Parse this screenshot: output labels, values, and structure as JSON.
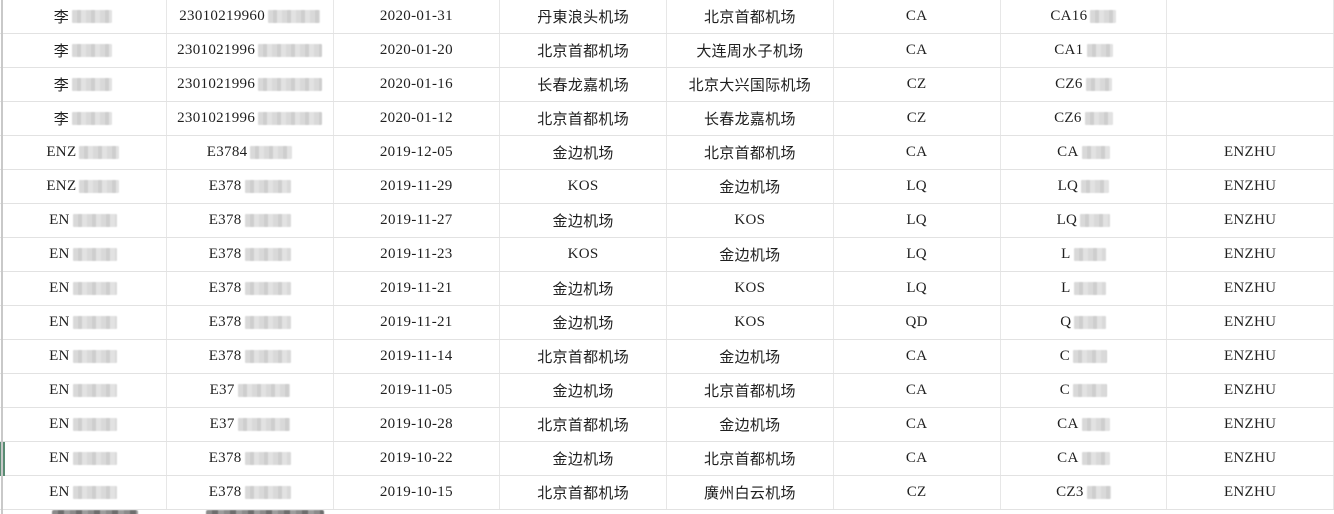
{
  "colors": {
    "row_marker_green": "#5a8c73",
    "grid_line": "#e2e2e2",
    "sheet_edge": "#c9c9c9",
    "text": "#1f1f1f",
    "redaction_light": "#d2d2d2",
    "redaction_dark": "#7a7a7a"
  },
  "rows": [
    {
      "name_prefix": "李",
      "name_redacted_w": 40,
      "id_prefix": "23010219960",
      "id_redacted_w": 52,
      "date": "2020-01-31",
      "from": "丹東浪头机场",
      "to": "北京首都机场",
      "carrier": "CA",
      "flight_prefix": "CA16",
      "flight_redacted_w": 26,
      "tag": "",
      "marked": false
    },
    {
      "name_prefix": "李",
      "name_redacted_w": 40,
      "id_prefix": "2301021996",
      "id_redacted_w": 64,
      "date": "2020-01-20",
      "from": "北京首都机场",
      "to": "大连周水子机场",
      "carrier": "CA",
      "flight_prefix": "CA1",
      "flight_redacted_w": 26,
      "tag": "",
      "marked": false
    },
    {
      "name_prefix": "李",
      "name_redacted_w": 40,
      "id_prefix": "2301021996",
      "id_redacted_w": 64,
      "date": "2020-01-16",
      "from": "长春龙嘉机场",
      "to": "北京大兴国际机场",
      "carrier": "CZ",
      "flight_prefix": "CZ6",
      "flight_redacted_w": 26,
      "tag": "",
      "marked": false
    },
    {
      "name_prefix": "李",
      "name_redacted_w": 40,
      "id_prefix": "2301021996",
      "id_redacted_w": 64,
      "date": "2020-01-12",
      "from": "北京首都机场",
      "to": "长春龙嘉机场",
      "carrier": "CZ",
      "flight_prefix": "CZ6",
      "flight_redacted_w": 28,
      "tag": "",
      "marked": false
    },
    {
      "name_prefix": "ENZ",
      "name_redacted_w": 40,
      "id_prefix": "E3784",
      "id_redacted_w": 42,
      "date": "2019-12-05",
      "from": "金边机场",
      "to": "北京首都机场",
      "carrier": "CA",
      "flight_prefix": "CA",
      "flight_redacted_w": 28,
      "tag": "ENZHU",
      "marked": false
    },
    {
      "name_prefix": "ENZ",
      "name_redacted_w": 40,
      "id_prefix": "E378",
      "id_redacted_w": 46,
      "date": "2019-11-29",
      "from": "KOS",
      "to": "金边机场",
      "carrier": "LQ",
      "flight_prefix": "LQ",
      "flight_redacted_w": 28,
      "tag": "ENZHU",
      "marked": false
    },
    {
      "name_prefix": "EN",
      "name_redacted_w": 44,
      "id_prefix": "E378",
      "id_redacted_w": 46,
      "date": "2019-11-27",
      "from": "金边机场",
      "to": "KOS",
      "carrier": "LQ",
      "flight_prefix": "LQ",
      "flight_redacted_w": 30,
      "tag": "ENZHU",
      "marked": false
    },
    {
      "name_prefix": "EN",
      "name_redacted_w": 44,
      "id_prefix": "E378",
      "id_redacted_w": 46,
      "date": "2019-11-23",
      "from": "KOS",
      "to": "金边机场",
      "carrier": "LQ",
      "flight_prefix": "L",
      "flight_redacted_w": 32,
      "tag": "ENZHU",
      "marked": false
    },
    {
      "name_prefix": "EN",
      "name_redacted_w": 44,
      "id_prefix": "E378",
      "id_redacted_w": 46,
      "date": "2019-11-21",
      "from": "金边机场",
      "to": "KOS",
      "carrier": "LQ",
      "flight_prefix": "L",
      "flight_redacted_w": 32,
      "tag": "ENZHU",
      "marked": false
    },
    {
      "name_prefix": "EN",
      "name_redacted_w": 44,
      "id_prefix": "E378",
      "id_redacted_w": 46,
      "date": "2019-11-21",
      "from": "金边机场",
      "to": "KOS",
      "carrier": "QD",
      "flight_prefix": "Q",
      "flight_redacted_w": 32,
      "tag": "ENZHU",
      "marked": false
    },
    {
      "name_prefix": "EN",
      "name_redacted_w": 44,
      "id_prefix": "E378",
      "id_redacted_w": 46,
      "date": "2019-11-14",
      "from": "北京首都机场",
      "to": "金边机场",
      "carrier": "CA",
      "flight_prefix": "C",
      "flight_redacted_w": 34,
      "tag": "ENZHU",
      "marked": false
    },
    {
      "name_prefix": "EN",
      "name_redacted_w": 44,
      "id_prefix": "E37",
      "id_redacted_w": 52,
      "date": "2019-11-05",
      "from": "金边机场",
      "to": "北京首都机场",
      "carrier": "CA",
      "flight_prefix": "C",
      "flight_redacted_w": 34,
      "tag": "ENZHU",
      "marked": false
    },
    {
      "name_prefix": "EN",
      "name_redacted_w": 44,
      "id_prefix": "E37",
      "id_redacted_w": 52,
      "date": "2019-10-28",
      "from": "北京首都机场",
      "to": "金边机场",
      "carrier": "CA",
      "flight_prefix": "CA",
      "flight_redacted_w": 28,
      "tag": "ENZHU",
      "marked": false
    },
    {
      "name_prefix": "EN",
      "name_redacted_w": 44,
      "id_prefix": "E378",
      "id_redacted_w": 46,
      "date": "2019-10-22",
      "from": "金边机场",
      "to": "北京首都机场",
      "carrier": "CA",
      "flight_prefix": "CA",
      "flight_redacted_w": 28,
      "tag": "ENZHU",
      "marked": true
    },
    {
      "name_prefix": "EN",
      "name_redacted_w": 44,
      "id_prefix": "E378",
      "id_redacted_w": 46,
      "date": "2019-10-15",
      "from": "北京首都机场",
      "to": "廣州白云机场",
      "carrier": "CZ",
      "flight_prefix": "CZ3",
      "flight_redacted_w": 24,
      "tag": "ENZHU",
      "marked": false
    }
  ],
  "partial_row": {
    "col1_redacted": true,
    "col2_redacted": true
  }
}
